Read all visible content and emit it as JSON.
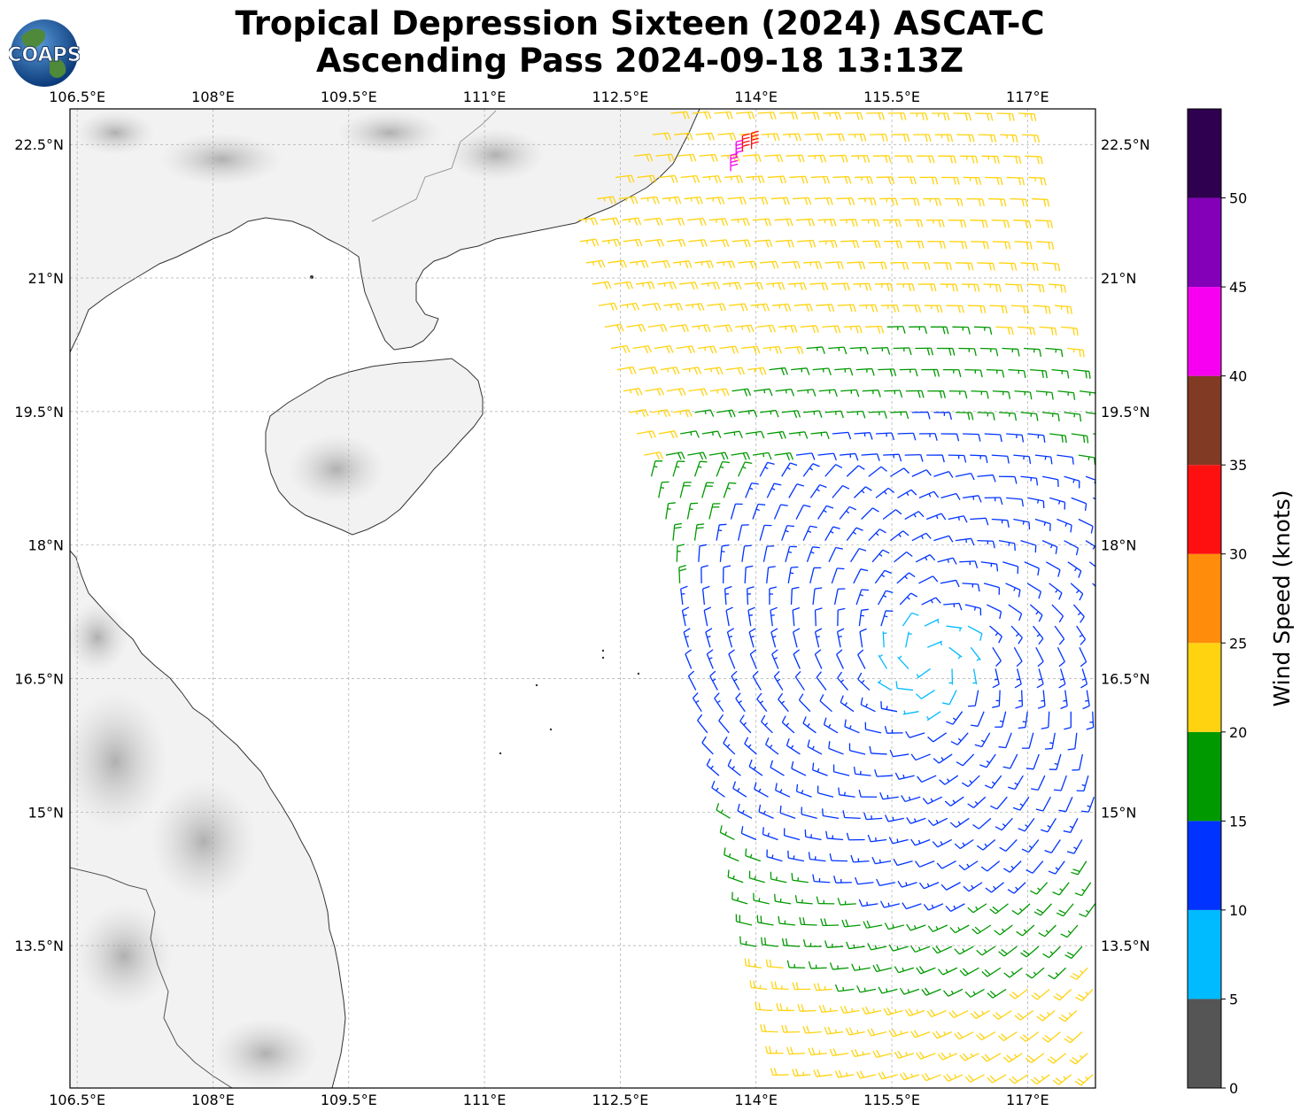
{
  "header": {
    "title_line1": "Tropical Depression Sixteen (2024) ASCAT-C",
    "title_line2": "Ascending Pass 2024-09-18 13:13Z",
    "logo_text": "COAPS"
  },
  "map": {
    "lon_range": [
      106.42,
      117.75
    ],
    "lat_range": [
      11.9,
      22.9
    ],
    "lon_ticks": [
      106.5,
      108,
      109.5,
      111,
      112.5,
      114,
      115.5,
      117
    ],
    "lon_tick_labels": [
      "106.5°E",
      "108°E",
      "109.5°E",
      "111°E",
      "112.5°E",
      "114°E",
      "115.5°E",
      "117°E"
    ],
    "lat_ticks": [
      22.5,
      21,
      19.5,
      18,
      16.5,
      15,
      13.5
    ],
    "lat_tick_labels": [
      "22.5°N",
      "21°N",
      "19.5°N",
      "18°N",
      "16.5°N",
      "15°N",
      "13.5°N"
    ],
    "gridlines": true,
    "land_color": "#f4f4f4",
    "coast_color": "#333333",
    "border_color": "#999999",
    "wind_barbs": {
      "swath": [
        {
          "lat": 22.9,
          "lon_west": 113.1,
          "lon_east": 117.0
        },
        {
          "lat": 21.6,
          "lon_west": 112.0,
          "lon_east": 117.2
        },
        {
          "lat": 19.5,
          "lon_west": 112.6,
          "lon_east": 117.75
        },
        {
          "lat": 18.0,
          "lon_west": 113.1,
          "lon_east": 117.75
        },
        {
          "lat": 16.5,
          "lon_west": 113.3,
          "lon_east": 117.75
        },
        {
          "lat": 15.0,
          "lon_west": 113.7,
          "lon_east": 117.75
        },
        {
          "lat": 13.5,
          "lon_west": 114.0,
          "lon_east": 117.75
        },
        {
          "lat": 11.9,
          "lon_west": 114.4,
          "lon_east": 117.75
        }
      ],
      "spacing_deg": 0.24,
      "circulation_center": {
        "lon": 115.9,
        "lat": 16.7
      },
      "speed_bands": [
        {
          "max_lat_dist": 0.6,
          "speed": 7
        },
        {
          "max_lat_dist": 2.8,
          "speed": 13
        },
        {
          "max_lat_dist": 3.8,
          "speed": 17
        },
        {
          "max_lat_dist": 99,
          "speed": 22
        }
      ]
    }
  },
  "colorbar": {
    "title": "Wind Speed (knots)",
    "tick_values": [
      0,
      5,
      10,
      15,
      20,
      25,
      30,
      35,
      40,
      45,
      50
    ],
    "tick_labels": [
      "0",
      "5",
      "10",
      "15",
      "20",
      "25",
      "30",
      "35",
      "40",
      "45",
      "50"
    ],
    "max": 55,
    "colors": [
      "#555555",
      "#00bbff",
      "#0033ff",
      "#009900",
      "#ffd310",
      "#ff8c0a",
      "#ff1010",
      "#813a24",
      "#f700f1",
      "#8400b8",
      "#2f004f"
    ]
  }
}
